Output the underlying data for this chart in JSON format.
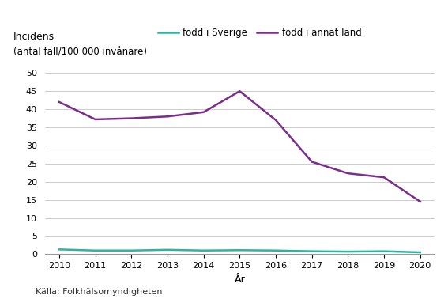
{
  "years": [
    2010,
    2011,
    2012,
    2013,
    2014,
    2015,
    2016,
    2017,
    2018,
    2019,
    2020
  ],
  "sverige": [
    1.3,
    1.0,
    1.0,
    1.2,
    1.0,
    1.1,
    1.0,
    0.8,
    0.7,
    0.8,
    0.5
  ],
  "annat_land": [
    42.0,
    37.2,
    37.5,
    38.0,
    39.2,
    45.0,
    37.0,
    25.5,
    22.3,
    21.2,
    14.5
  ],
  "color_sverige": "#2ab5a0",
  "color_annat_land": "#7b2d8b",
  "legend_sverige": "född i Sverige",
  "legend_annat_land": "född i annat land",
  "title_line1": "Incidens",
  "title_line2": "(antal fall/100 000 invånare)",
  "xlabel": "År",
  "yticks": [
    0,
    5,
    10,
    15,
    20,
    25,
    30,
    35,
    40,
    45,
    50
  ],
  "ylim": [
    0,
    52
  ],
  "source": "Källa: Folkhälsomyndigheten",
  "background_color": "#ffffff",
  "plot_bg_color": "#ffffff",
  "grid_color": "#cccccc",
  "linewidth": 1.8
}
